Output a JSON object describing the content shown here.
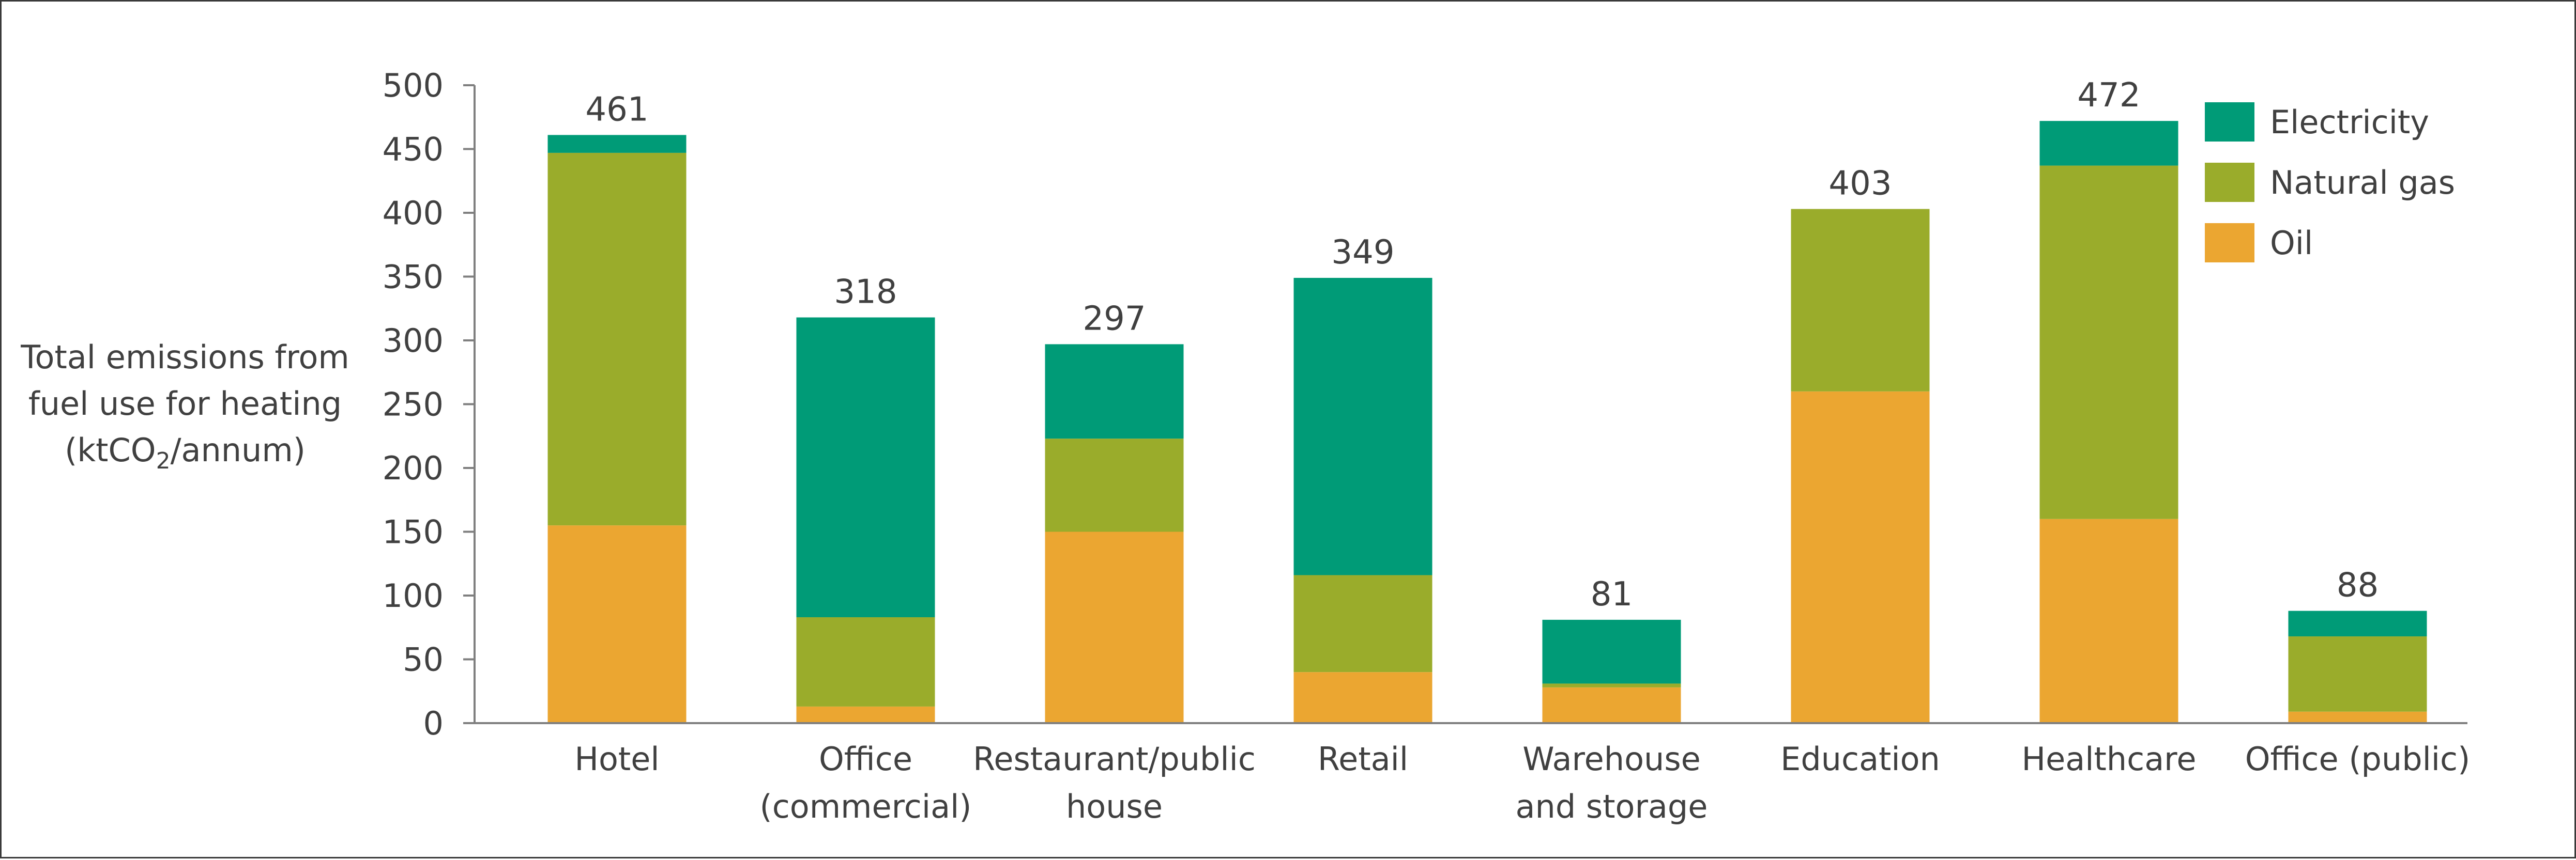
{
  "chart_data": {
    "type": "bar",
    "stacked": true,
    "title": "",
    "xlabel": "",
    "ylabel": "Total emissions from fuel use for heating (ktCO2/annum)",
    "ylabel_lines": [
      "Total emissions from",
      "fuel use for heating",
      "(ktCO",
      "2",
      "/annum)"
    ],
    "ylim": [
      0,
      500
    ],
    "yticks": [
      0,
      50,
      100,
      150,
      200,
      250,
      300,
      350,
      400,
      450,
      500
    ],
    "categories": [
      "Hotel",
      "Office (commercial)",
      "Restaurant/public house",
      "Retail",
      "Warehouse and storage",
      "Education",
      "Healthcare",
      "Office (public)"
    ],
    "category_lines": [
      [
        "Hotel"
      ],
      [
        "Office",
        "(commercial)"
      ],
      [
        "Restaurant/public",
        "house"
      ],
      [
        "Retail"
      ],
      [
        "Warehouse",
        "and storage"
      ],
      [
        "Education"
      ],
      [
        "Healthcare"
      ],
      [
        "Office (public)"
      ]
    ],
    "series": [
      {
        "name": "Oil",
        "color": "#eba631",
        "values": [
          155,
          13,
          150,
          40,
          28,
          260,
          160,
          9
        ]
      },
      {
        "name": "Natural gas",
        "color": "#9aac2b",
        "values": [
          292,
          70,
          73,
          76,
          3,
          143,
          277,
          59
        ]
      },
      {
        "name": "Electricity",
        "color": "#009b77",
        "values": [
          14,
          235,
          74,
          233,
          50,
          0,
          35,
          20
        ]
      }
    ],
    "totals": [
      461,
      318,
      297,
      349,
      81,
      403,
      472,
      88
    ],
    "legend": {
      "position": "top-right",
      "order": [
        "Electricity",
        "Natural gas",
        "Oil"
      ]
    },
    "grid": false
  }
}
